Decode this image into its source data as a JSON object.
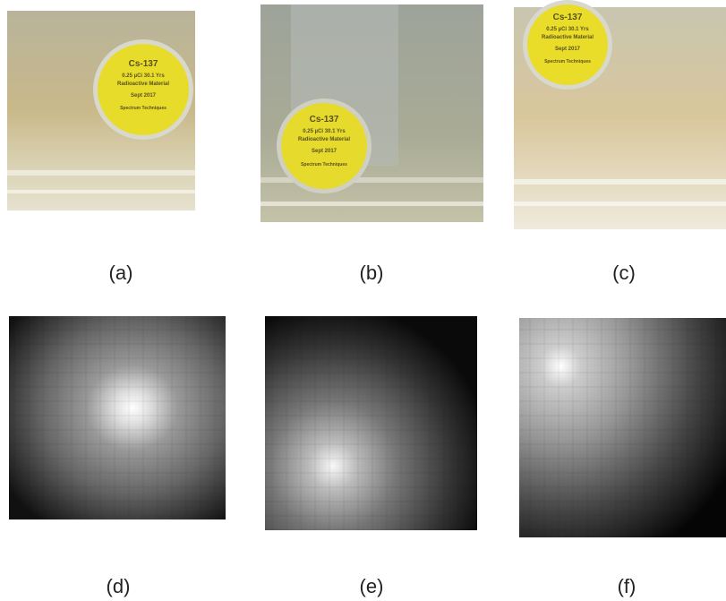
{
  "panels": [
    {
      "label": "(a)"
    },
    {
      "label": "(b)"
    },
    {
      "label": "(c)"
    },
    {
      "label": "(d)"
    },
    {
      "label": "(e)"
    },
    {
      "label": "(f)"
    }
  ],
  "source_label": {
    "isotope": "Cs-137",
    "activity": "0.25 µCi  30.1 Yrs",
    "material": "Radioactive Material",
    "date": "Sept 2017",
    "maker": "Spectrum Techniques"
  }
}
